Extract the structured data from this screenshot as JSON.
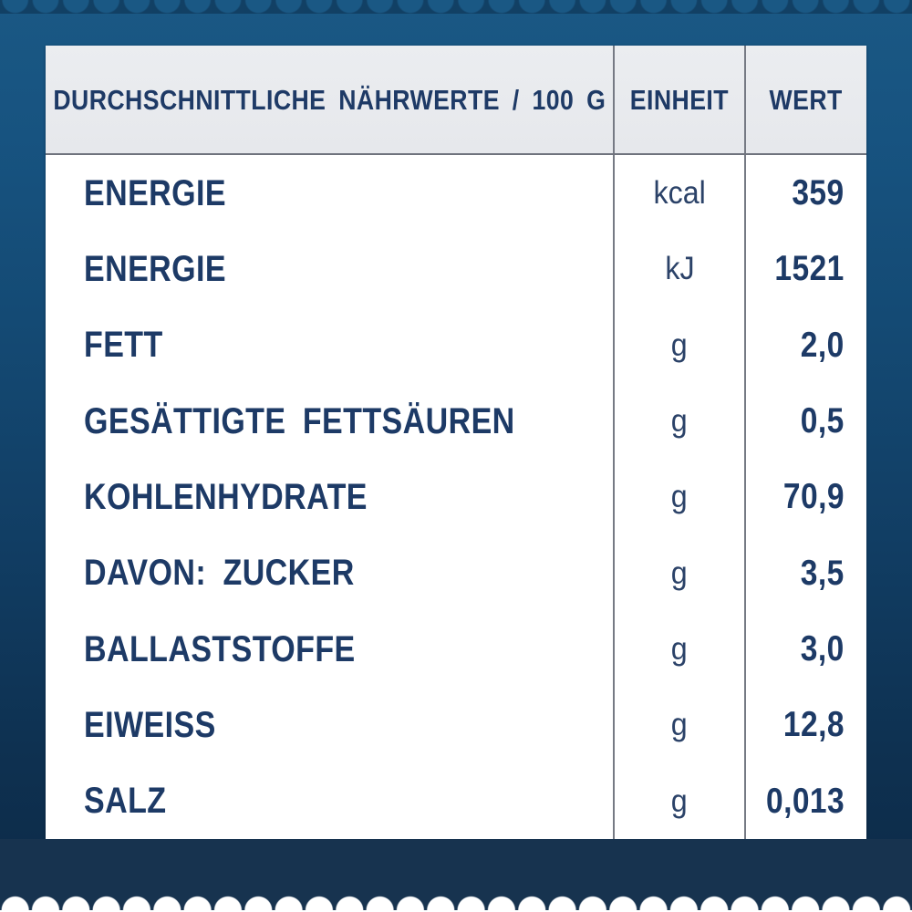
{
  "colors": {
    "background_top": "#1a5884",
    "background_bottom": "#0c2a47",
    "band_navy": "#17334f",
    "header_bg": "#e9eaee",
    "table_bg": "#ffffff",
    "text_navy": "#1d3a66",
    "separator_gray": "#767a84"
  },
  "table": {
    "header": {
      "nutrients": "DURCHSCHNITTLICHE NÄHRWERTE / 100 G",
      "unit": "EINHEIT",
      "value": "WERT"
    },
    "rows": [
      {
        "label": "ENERGIE",
        "unit": "kcal",
        "value": "359"
      },
      {
        "label": "ENERGIE",
        "unit": "kJ",
        "value": "1521"
      },
      {
        "label": "FETT",
        "unit": "g",
        "value": "2,0"
      },
      {
        "label": "GESÄTTIGTE FETTSÄUREN",
        "unit": "g",
        "value": "0,5"
      },
      {
        "label": "KOHLENHYDRATE",
        "unit": "g",
        "value": "70,9"
      },
      {
        "label": "DAVON: ZUCKER",
        "unit": "g",
        "value": "3,5"
      },
      {
        "label": "BALLASTSTOFFE",
        "unit": "g",
        "value": "3,0"
      },
      {
        "label": "EIWEISS",
        "unit": "g",
        "value": "12,8"
      },
      {
        "label": "SALZ",
        "unit": "g",
        "value": "0,013"
      }
    ]
  }
}
